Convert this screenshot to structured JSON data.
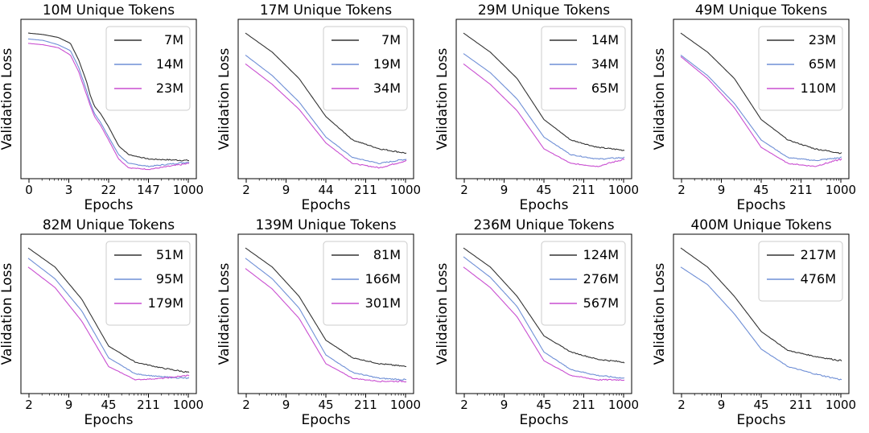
{
  "chart_data": [
    {
      "type": "line",
      "title": "10M Unique Tokens",
      "xlabel": "Epochs",
      "ylabel": "Validation Loss",
      "xscale": "log",
      "xticks": [
        "0",
        "3",
        "22",
        "147",
        "1000"
      ],
      "series": [
        {
          "name": "7M",
          "color": "#333333",
          "points": [
            [
              0,
              0.95
            ],
            [
              0.15,
              0.94
            ],
            [
              0.3,
              0.92
            ],
            [
              0.42,
              0.88
            ],
            [
              0.5,
              0.77
            ],
            [
              0.58,
              0.62
            ],
            [
              0.62,
              0.52
            ],
            [
              0.66,
              0.45
            ],
            [
              0.72,
              0.4
            ],
            [
              0.8,
              0.31
            ],
            [
              0.9,
              0.18
            ],
            [
              1,
              0.12
            ],
            [
              1.2,
              0.09
            ],
            [
              1.6,
              0.08
            ]
          ]
        },
        {
          "name": "14M",
          "color": "#6f8fd6",
          "points": [
            [
              0,
              0.91
            ],
            [
              0.15,
              0.9
            ],
            [
              0.3,
              0.87
            ],
            [
              0.42,
              0.83
            ],
            [
              0.5,
              0.72
            ],
            [
              0.58,
              0.56
            ],
            [
              0.62,
              0.47
            ],
            [
              0.66,
              0.4
            ],
            [
              0.72,
              0.34
            ],
            [
              0.8,
              0.24
            ],
            [
              0.9,
              0.12
            ],
            [
              1,
              0.06
            ],
            [
              1.2,
              0.04
            ],
            [
              1.6,
              0.07
            ]
          ]
        },
        {
          "name": "23M",
          "color": "#c94fd1",
          "points": [
            [
              0,
              0.88
            ],
            [
              0.15,
              0.87
            ],
            [
              0.3,
              0.85
            ],
            [
              0.42,
              0.8
            ],
            [
              0.5,
              0.69
            ],
            [
              0.58,
              0.53
            ],
            [
              0.62,
              0.45
            ],
            [
              0.66,
              0.38
            ],
            [
              0.72,
              0.32
            ],
            [
              0.8,
              0.22
            ],
            [
              0.9,
              0.09
            ],
            [
              1,
              0.03
            ],
            [
              1.2,
              0.02
            ],
            [
              1.6,
              0.06
            ]
          ]
        }
      ]
    },
    {
      "type": "line",
      "title": "17M Unique Tokens",
      "xlabel": "Epochs",
      "ylabel": "Validation Loss",
      "xscale": "log",
      "xticks": [
        "2",
        "9",
        "44",
        "211",
        "1000"
      ],
      "series": [
        {
          "name": "7M",
          "color": "#333333",
          "points": [
            [
              0,
              0.95
            ],
            [
              0.25,
              0.82
            ],
            [
              0.5,
              0.64
            ],
            [
              0.75,
              0.38
            ],
            [
              1,
              0.22
            ],
            [
              1.25,
              0.16
            ],
            [
              1.5,
              0.13
            ]
          ]
        },
        {
          "name": "19M",
          "color": "#6f8fd6",
          "points": [
            [
              0,
              0.8
            ],
            [
              0.25,
              0.66
            ],
            [
              0.5,
              0.48
            ],
            [
              0.75,
              0.24
            ],
            [
              1,
              0.1
            ],
            [
              1.25,
              0.06
            ],
            [
              1.5,
              0.09
            ]
          ]
        },
        {
          "name": "34M",
          "color": "#c94fd1",
          "points": [
            [
              0,
              0.74
            ],
            [
              0.25,
              0.6
            ],
            [
              0.5,
              0.43
            ],
            [
              0.75,
              0.2
            ],
            [
              1,
              0.06
            ],
            [
              1.25,
              0.03
            ],
            [
              1.5,
              0.08
            ]
          ]
        }
      ]
    },
    {
      "type": "line",
      "title": "29M Unique Tokens",
      "xlabel": "Epochs",
      "ylabel": "Validation Loss",
      "xscale": "log",
      "xticks": [
        "2",
        "9",
        "45",
        "211",
        "1000"
      ],
      "series": [
        {
          "name": "14M",
          "color": "#333333",
          "points": [
            [
              0,
              0.95
            ],
            [
              0.25,
              0.82
            ],
            [
              0.5,
              0.64
            ],
            [
              0.75,
              0.36
            ],
            [
              1,
              0.22
            ],
            [
              1.25,
              0.17
            ],
            [
              1.5,
              0.15
            ]
          ]
        },
        {
          "name": "34M",
          "color": "#6f8fd6",
          "points": [
            [
              0,
              0.81
            ],
            [
              0.25,
              0.68
            ],
            [
              0.5,
              0.5
            ],
            [
              0.75,
              0.24
            ],
            [
              1,
              0.12
            ],
            [
              1.25,
              0.09
            ],
            [
              1.5,
              0.1
            ]
          ]
        },
        {
          "name": "65M",
          "color": "#c94fd1",
          "points": [
            [
              0,
              0.74
            ],
            [
              0.25,
              0.6
            ],
            [
              0.5,
              0.42
            ],
            [
              0.75,
              0.16
            ],
            [
              1,
              0.06
            ],
            [
              1.25,
              0.04
            ],
            [
              1.5,
              0.09
            ]
          ]
        }
      ]
    },
    {
      "type": "line",
      "title": "49M Unique Tokens",
      "xlabel": "Epochs",
      "ylabel": "Validation Loss",
      "xscale": "log",
      "xticks": [
        "2",
        "9",
        "45",
        "211",
        "1000"
      ],
      "series": [
        {
          "name": "23M",
          "color": "#333333",
          "points": [
            [
              0,
              0.95
            ],
            [
              0.25,
              0.82
            ],
            [
              0.5,
              0.64
            ],
            [
              0.75,
              0.36
            ],
            [
              1,
              0.22
            ],
            [
              1.25,
              0.16
            ],
            [
              1.5,
              0.13
            ]
          ]
        },
        {
          "name": "65M",
          "color": "#6f8fd6",
          "points": [
            [
              0,
              0.8
            ],
            [
              0.25,
              0.66
            ],
            [
              0.5,
              0.47
            ],
            [
              0.75,
              0.22
            ],
            [
              1,
              0.1
            ],
            [
              1.25,
              0.08
            ],
            [
              1.5,
              0.1
            ]
          ]
        },
        {
          "name": "110M",
          "color": "#c94fd1",
          "points": [
            [
              0,
              0.79
            ],
            [
              0.25,
              0.64
            ],
            [
              0.5,
              0.44
            ],
            [
              0.75,
              0.17
            ],
            [
              1,
              0.06
            ],
            [
              1.25,
              0.04
            ],
            [
              1.5,
              0.09
            ]
          ]
        }
      ]
    },
    {
      "type": "line",
      "title": "82M Unique Tokens",
      "xlabel": "Epochs",
      "ylabel": "Validation Loss",
      "xscale": "log",
      "xticks": [
        "2",
        "9",
        "45",
        "211",
        "1000"
      ],
      "series": [
        {
          "name": "51M",
          "color": "#333333",
          "points": [
            [
              0,
              0.95
            ],
            [
              0.25,
              0.82
            ],
            [
              0.5,
              0.6
            ],
            [
              0.75,
              0.28
            ],
            [
              1,
              0.17
            ],
            [
              1.25,
              0.13
            ],
            [
              1.5,
              0.1
            ]
          ]
        },
        {
          "name": "95M",
          "color": "#6f8fd6",
          "points": [
            [
              0,
              0.88
            ],
            [
              0.25,
              0.74
            ],
            [
              0.5,
              0.52
            ],
            [
              0.75,
              0.2
            ],
            [
              1,
              0.09
            ],
            [
              1.25,
              0.07
            ],
            [
              1.5,
              0.06
            ]
          ]
        },
        {
          "name": "179M",
          "color": "#c94fd1",
          "points": [
            [
              0,
              0.82
            ],
            [
              0.25,
              0.68
            ],
            [
              0.5,
              0.45
            ],
            [
              0.75,
              0.14
            ],
            [
              1,
              0.05
            ],
            [
              1.25,
              0.06
            ],
            [
              1.5,
              0.08
            ]
          ]
        }
      ]
    },
    {
      "type": "line",
      "title": "139M Unique Tokens",
      "xlabel": "Epochs",
      "ylabel": "Validation Loss",
      "xscale": "log",
      "xticks": [
        "2",
        "9",
        "45",
        "211",
        "1000"
      ],
      "series": [
        {
          "name": "81M",
          "color": "#333333",
          "points": [
            [
              0,
              0.95
            ],
            [
              0.25,
              0.82
            ],
            [
              0.5,
              0.62
            ],
            [
              0.75,
              0.32
            ],
            [
              1,
              0.2
            ],
            [
              1.25,
              0.16
            ],
            [
              1.5,
              0.14
            ]
          ]
        },
        {
          "name": "166M",
          "color": "#6f8fd6",
          "points": [
            [
              0,
              0.88
            ],
            [
              0.25,
              0.74
            ],
            [
              0.5,
              0.54
            ],
            [
              0.75,
              0.22
            ],
            [
              1,
              0.1
            ],
            [
              1.25,
              0.06
            ],
            [
              1.5,
              0.05
            ]
          ]
        },
        {
          "name": "301M",
          "color": "#c94fd1",
          "points": [
            [
              0,
              0.81
            ],
            [
              0.25,
              0.67
            ],
            [
              0.5,
              0.47
            ],
            [
              0.75,
              0.16
            ],
            [
              1,
              0.06
            ],
            [
              1.25,
              0.04
            ],
            [
              1.5,
              0.04
            ]
          ]
        }
      ]
    },
    {
      "type": "line",
      "title": "236M Unique Tokens",
      "xlabel": "Epochs",
      "ylabel": "Validation Loss",
      "xscale": "log",
      "xticks": [
        "2",
        "9",
        "45",
        "211",
        "1000"
      ],
      "series": [
        {
          "name": "124M",
          "color": "#333333",
          "points": [
            [
              0,
              0.95
            ],
            [
              0.25,
              0.82
            ],
            [
              0.5,
              0.62
            ],
            [
              0.75,
              0.35
            ],
            [
              1,
              0.24
            ],
            [
              1.25,
              0.19
            ],
            [
              1.5,
              0.17
            ]
          ]
        },
        {
          "name": "276M",
          "color": "#6f8fd6",
          "points": [
            [
              0,
              0.89
            ],
            [
              0.25,
              0.75
            ],
            [
              0.5,
              0.55
            ],
            [
              0.75,
              0.24
            ],
            [
              1,
              0.12
            ],
            [
              1.25,
              0.08
            ],
            [
              1.5,
              0.06
            ]
          ]
        },
        {
          "name": "567M",
          "color": "#c94fd1",
          "points": [
            [
              0,
              0.82
            ],
            [
              0.25,
              0.68
            ],
            [
              0.5,
              0.48
            ],
            [
              0.75,
              0.18
            ],
            [
              1,
              0.08
            ],
            [
              1.25,
              0.05
            ],
            [
              1.5,
              0.05
            ]
          ]
        }
      ]
    },
    {
      "type": "line",
      "title": "400M Unique Tokens",
      "xlabel": "Epochs",
      "ylabel": "Validation Loss",
      "xscale": "log",
      "xticks": [
        "2",
        "9",
        "45",
        "211",
        "1000"
      ],
      "series": [
        {
          "name": "217M",
          "color": "#333333",
          "points": [
            [
              0,
              0.95
            ],
            [
              0.25,
              0.82
            ],
            [
              0.5,
              0.62
            ],
            [
              0.75,
              0.38
            ],
            [
              1,
              0.25
            ],
            [
              1.25,
              0.21
            ],
            [
              1.5,
              0.18
            ]
          ]
        },
        {
          "name": "476M",
          "color": "#6f8fd6",
          "points": [
            [
              0,
              0.82
            ],
            [
              0.25,
              0.7
            ],
            [
              0.5,
              0.5
            ],
            [
              0.75,
              0.26
            ],
            [
              1,
              0.14
            ],
            [
              1.25,
              0.09
            ],
            [
              1.5,
              0.05
            ]
          ]
        }
      ]
    }
  ]
}
